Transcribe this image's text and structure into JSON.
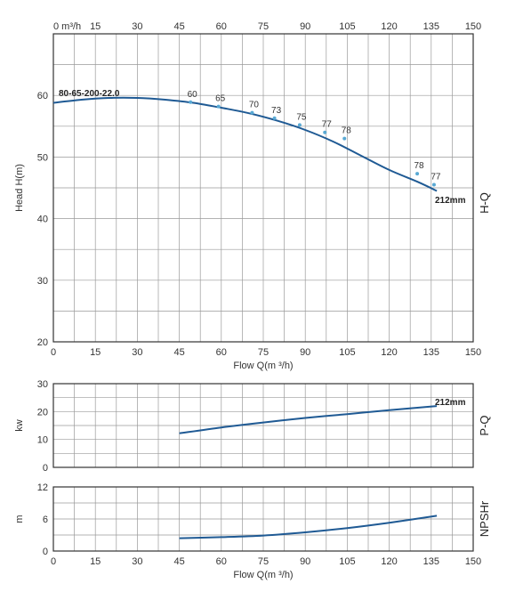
{
  "chart_data": [
    {
      "id": "hq",
      "type": "line",
      "model": "80-65-200-22.0",
      "side_label": "H-Q",
      "ylabel": "Head H(m)",
      "xlabel": "Flow Q(m ³/h)",
      "top_axis_label": "0  m³/h",
      "xlim": [
        0,
        150
      ],
      "ylim": [
        20,
        70
      ],
      "xticks": [
        0,
        15,
        30,
        45,
        60,
        75,
        90,
        105,
        120,
        135,
        150
      ],
      "xtick_labels": [
        "0",
        "15",
        "30",
        "45",
        "60",
        "75",
        "90",
        "105",
        "120",
        "135",
        "150"
      ],
      "top_tick_labels": [
        "",
        "15",
        "30",
        "45",
        "60",
        "75",
        "90",
        "105",
        "120",
        "135",
        "150"
      ],
      "yticks": [
        20,
        30,
        40,
        50,
        60
      ],
      "ytick_labels": [
        "20",
        "30",
        "40",
        "50",
        "60"
      ],
      "grid": true,
      "series": [
        {
          "name": "212mm",
          "x": [
            0,
            10,
            20,
            30,
            40,
            50,
            60,
            70,
            80,
            90,
            100,
            110,
            120,
            130,
            137
          ],
          "y": [
            58.8,
            59.3,
            59.6,
            59.6,
            59.3,
            58.8,
            58.0,
            57.1,
            55.9,
            54.4,
            52.5,
            50.2,
            47.9,
            46.0,
            44.5
          ]
        }
      ],
      "efficiency_points": [
        {
          "label": "60",
          "x": 49,
          "y": 58.9
        },
        {
          "label": "65",
          "x": 59,
          "y": 58.2
        },
        {
          "label": "70",
          "x": 71,
          "y": 57.2
        },
        {
          "label": "73",
          "x": 79,
          "y": 56.3
        },
        {
          "label": "75",
          "x": 88,
          "y": 55.2
        },
        {
          "label": "77",
          "x": 97,
          "y": 54.0
        },
        {
          "label": "78",
          "x": 104,
          "y": 53.0
        },
        {
          "label": "78",
          "x": 130,
          "y": 47.3
        },
        {
          "label": "77",
          "x": 136,
          "y": 45.5
        }
      ]
    },
    {
      "id": "pq",
      "type": "line",
      "side_label": "P-Q",
      "ylabel": "kw",
      "xlim": [
        0,
        150
      ],
      "ylim": [
        0,
        30
      ],
      "yticks": [
        0,
        10,
        20,
        30
      ],
      "ytick_labels": [
        "0",
        "10",
        "20",
        "30"
      ],
      "grid": true,
      "series": [
        {
          "name": "212mm",
          "x": [
            45,
            60,
            75,
            90,
            105,
            120,
            137
          ],
          "y": [
            12.2,
            14.3,
            16.1,
            17.7,
            19.1,
            20.5,
            22.0
          ]
        }
      ]
    },
    {
      "id": "npsh",
      "type": "line",
      "side_label": "NPSHr",
      "ylabel": "m",
      "xlabel": "Flow Q(m ³/h)",
      "xlim": [
        0,
        150
      ],
      "ylim": [
        0,
        12
      ],
      "xticks": [
        0,
        15,
        30,
        45,
        60,
        75,
        90,
        105,
        120,
        135,
        150
      ],
      "xtick_labels": [
        "0",
        "15",
        "30",
        "45",
        "60",
        "75",
        "90",
        "105",
        "120",
        "135",
        "150"
      ],
      "yticks": [
        0,
        6,
        12
      ],
      "ytick_labels": [
        "0",
        "6",
        "12"
      ],
      "grid": true,
      "series": [
        {
          "name": "NPSHr",
          "x": [
            45,
            60,
            75,
            90,
            105,
            120,
            137
          ],
          "y": [
            2.4,
            2.6,
            2.9,
            3.5,
            4.3,
            5.3,
            6.6
          ]
        }
      ]
    }
  ],
  "colors": {
    "curve": "#1f5a94",
    "grid": "#9a9a9a",
    "frame": "#333333",
    "point": "#59a9d4"
  }
}
